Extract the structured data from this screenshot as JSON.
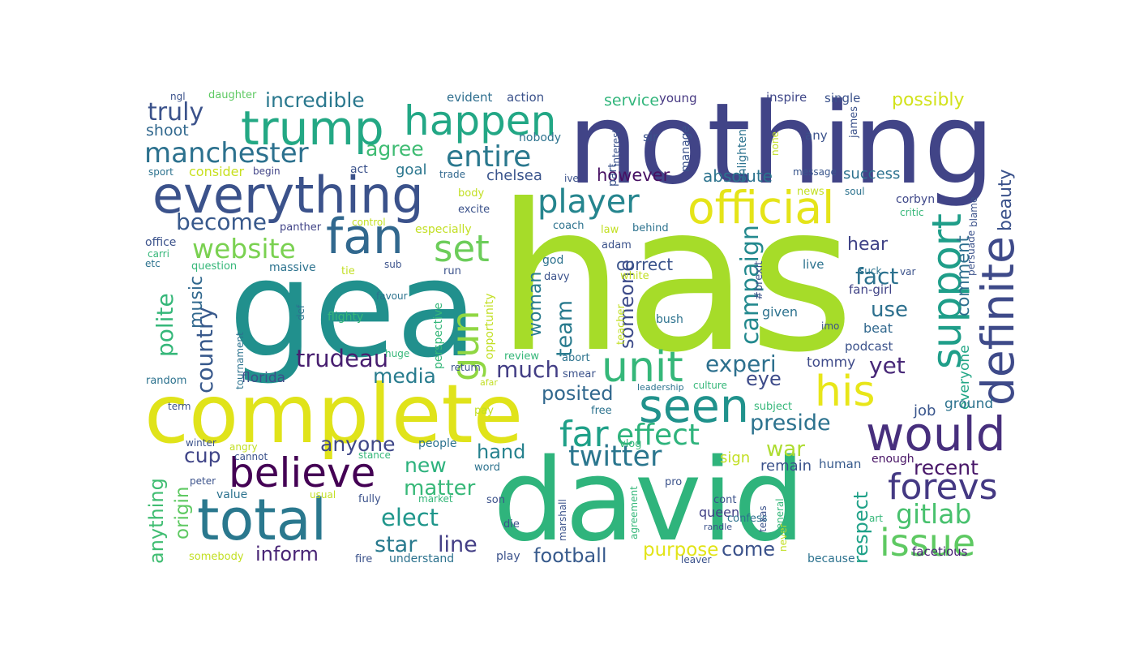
{
  "words": [
    {
      "t": "has",
      "c": "#a6dc29"
    },
    {
      "t": "nothing",
      "c": "#414487"
    },
    {
      "t": "gea",
      "c": "#21908d"
    },
    {
      "t": "complete",
      "c": "#e0e31a"
    },
    {
      "t": "david",
      "c": "#2fb47c"
    },
    {
      "t": "everything",
      "c": "#3b528b"
    },
    {
      "t": "total",
      "c": "#2a788e"
    },
    {
      "t": "trump",
      "c": "#23a884"
    },
    {
      "t": "happen",
      "c": "#22a785"
    },
    {
      "t": "official",
      "c": "#e5e419"
    },
    {
      "t": "fan",
      "c": "#31688e"
    },
    {
      "t": "support",
      "c": "#1f9e89"
    },
    {
      "t": "definite",
      "c": "#3e4a89"
    },
    {
      "t": "believe",
      "c": "#440154"
    },
    {
      "t": "seen",
      "c": "#20928c"
    },
    {
      "t": "his",
      "c": "#e8e619"
    },
    {
      "t": "unit",
      "c": "#35b779"
    },
    {
      "t": "would",
      "c": "#472f7d"
    },
    {
      "t": "manchester",
      "c": "#2c718e"
    },
    {
      "t": "player",
      "c": "#25858e"
    },
    {
      "t": "gun",
      "c": "#90d743"
    },
    {
      "t": "issue",
      "c": "#5ec962"
    },
    {
      "t": "forevs",
      "c": "#443983"
    },
    {
      "t": "entire",
      "c": "#2a788e"
    },
    {
      "t": "set",
      "c": "#6ccd5a"
    },
    {
      "t": "website",
      "c": "#7ad151"
    },
    {
      "t": "far",
      "c": "#1fa088"
    },
    {
      "t": "effect",
      "c": "#2eb37c"
    },
    {
      "t": "twitter",
      "c": "#2a768e"
    },
    {
      "t": "gitlab",
      "c": "#48c16e"
    },
    {
      "t": "truly",
      "c": "#3b528b"
    },
    {
      "t": "incredible",
      "c": "#2a788e"
    },
    {
      "t": "agree",
      "c": "#3fbc73"
    },
    {
      "t": "become",
      "c": "#38598c"
    },
    {
      "t": "trudeau",
      "c": "#481f70"
    },
    {
      "t": "campaign",
      "c": "#23898e"
    },
    {
      "t": "experi",
      "c": "#2d708e"
    },
    {
      "t": "media",
      "c": "#287c8e"
    },
    {
      "t": "much",
      "c": "#433e85"
    },
    {
      "t": "team",
      "c": "#297b8e"
    },
    {
      "t": "yet",
      "c": "#482878"
    },
    {
      "t": "country",
      "c": "#38598c"
    },
    {
      "t": "polite",
      "c": "#35b779"
    },
    {
      "t": "fact",
      "c": "#2c718e"
    },
    {
      "t": "use",
      "c": "#2d708e"
    },
    {
      "t": "preside",
      "c": "#2c728e"
    },
    {
      "t": "war",
      "c": "#addc30"
    },
    {
      "t": "respect",
      "c": "#1fa188"
    },
    {
      "t": "recent",
      "c": "#481769"
    },
    {
      "t": "elect",
      "c": "#1f968b"
    },
    {
      "t": "star",
      "c": "#297a8e"
    },
    {
      "t": "line",
      "c": "#433e85"
    },
    {
      "t": "matter",
      "c": "#37b878"
    },
    {
      "t": "new",
      "c": "#2db27d"
    },
    {
      "t": "hand",
      "c": "#26828e"
    },
    {
      "t": "anyone",
      "c": "#3f4788"
    },
    {
      "t": "inform",
      "c": "#482475"
    },
    {
      "t": "football",
      "c": "#375a8c"
    },
    {
      "t": "come",
      "c": "#3b528b"
    },
    {
      "t": "purpose",
      "c": "#e2e418"
    },
    {
      "t": "origin",
      "c": "#5ec962"
    },
    {
      "t": "anything",
      "c": "#40bd72"
    },
    {
      "t": "cup",
      "c": "#404588"
    },
    {
      "t": "music",
      "c": "#31688e"
    },
    {
      "t": "someone",
      "c": "#3e4c8a"
    },
    {
      "t": "woman",
      "c": "#297b8e"
    },
    {
      "t": "posited",
      "c": "#31688e"
    },
    {
      "t": "however",
      "c": "#471063"
    },
    {
      "t": "absolute",
      "c": "#2c738e"
    },
    {
      "t": "hear",
      "c": "#404387"
    },
    {
      "t": "comment",
      "c": "#2e6f8e"
    },
    {
      "t": "beauty",
      "c": "#3b528b"
    },
    {
      "t": "success",
      "c": "#2c718e"
    },
    {
      "t": "possibly",
      "c": "#d2e21b"
    },
    {
      "t": "service",
      "c": "#31b57b"
    },
    {
      "t": "eye",
      "c": "#3e4c8a"
    },
    {
      "t": "remain",
      "c": "#3b528b"
    },
    {
      "t": "job",
      "c": "#39558c"
    },
    {
      "t": "everyone",
      "c": "#21a685"
    },
    {
      "t": "ground",
      "c": "#2c728e"
    },
    {
      "t": "correct",
      "c": "#3a538b"
    },
    {
      "t": "shoot",
      "c": "#31688e"
    },
    {
      "t": "consider",
      "c": "#c8e020"
    },
    {
      "t": "goal",
      "c": "#2a768e"
    },
    {
      "t": "chelsea",
      "c": "#3a548c"
    },
    {
      "t": "florida",
      "c": "#3d4e8a"
    },
    {
      "t": "tommy",
      "c": "#3e4a89"
    },
    {
      "t": "given",
      "c": "#2c728e"
    },
    {
      "t": "podcast",
      "c": "#3b528b"
    },
    {
      "t": "beat",
      "c": "#31688e"
    },
    {
      "t": "fan-girl",
      "c": "#414487"
    },
    {
      "t": "live",
      "c": "#2c728e"
    },
    {
      "t": "corbyn",
      "c": "#3f4889"
    },
    {
      "t": "sign",
      "c": "#c2df23"
    },
    {
      "t": "human",
      "c": "#375a8c"
    },
    {
      "t": "enough",
      "c": "#471365"
    },
    {
      "t": "queen",
      "c": "#424086"
    },
    {
      "t": "facetious",
      "c": "#482173"
    },
    {
      "t": "because",
      "c": "#2c728e"
    },
    {
      "t": "ngl",
      "c": "#3b528b"
    },
    {
      "t": "daughter",
      "c": "#5ec962"
    },
    {
      "t": "evident",
      "c": "#2e6e8e"
    },
    {
      "t": "action",
      "c": "#3b528b"
    },
    {
      "t": "young",
      "c": "#453781"
    },
    {
      "t": "inspire",
      "c": "#3f4788"
    },
    {
      "t": "single",
      "c": "#3b528b"
    },
    {
      "t": "sport",
      "c": "#2c728e"
    },
    {
      "t": "begin",
      "c": "#414487"
    },
    {
      "t": "act",
      "c": "#3b528b"
    },
    {
      "t": "trade",
      "c": "#31688e"
    },
    {
      "t": "ive",
      "c": "#3b528b"
    },
    {
      "t": "nobody",
      "c": "#2c728e"
    },
    {
      "t": "sir",
      "c": "#3b528b"
    },
    {
      "t": "any",
      "c": "#3b528b"
    },
    {
      "t": "message",
      "c": "#39568c"
    },
    {
      "t": "news",
      "c": "#c2df23"
    },
    {
      "t": "soul",
      "c": "#2c728e"
    },
    {
      "t": "critic",
      "c": "#35b779"
    },
    {
      "t": "body",
      "c": "#c2df23"
    },
    {
      "t": "excite",
      "c": "#3b528b"
    },
    {
      "t": "panther",
      "c": "#414487"
    },
    {
      "t": "control",
      "c": "#c2df23"
    },
    {
      "t": "especially",
      "c": "#c2df23"
    },
    {
      "t": "coach",
      "c": "#2c728e"
    },
    {
      "t": "behind",
      "c": "#2c728e"
    },
    {
      "t": "law",
      "c": "#c2df23"
    },
    {
      "t": "adam",
      "c": "#3b528b"
    },
    {
      "t": "office",
      "c": "#3b528b"
    },
    {
      "t": "carri",
      "c": "#35b779"
    },
    {
      "t": "etc",
      "c": "#2c728e"
    },
    {
      "t": "question",
      "c": "#35b779"
    },
    {
      "t": "massive",
      "c": "#2c728e"
    },
    {
      "t": "tie",
      "c": "#c2df23"
    },
    {
      "t": "sub",
      "c": "#3b528b"
    },
    {
      "t": "run",
      "c": "#3b528b"
    },
    {
      "t": "god",
      "c": "#2c728e"
    },
    {
      "t": "davy",
      "c": "#3b528b"
    },
    {
      "t": "white",
      "c": "#c2df23"
    },
    {
      "t": "suck",
      "c": "#2c728e"
    },
    {
      "t": "var",
      "c": "#3b528b"
    },
    {
      "t": "favour",
      "c": "#2c728e"
    },
    {
      "t": "flighty",
      "c": "#35b779"
    },
    {
      "t": "bush",
      "c": "#2c728e"
    },
    {
      "t": "imo",
      "c": "#3b528b"
    },
    {
      "t": "random",
      "c": "#2c728e"
    },
    {
      "t": "huge",
      "c": "#35b779"
    },
    {
      "t": "review",
      "c": "#35b779"
    },
    {
      "t": "abort",
      "c": "#2c728e"
    },
    {
      "t": "return",
      "c": "#3b528b"
    },
    {
      "t": "smear",
      "c": "#3b528b"
    },
    {
      "t": "afar",
      "c": "#c2df23"
    },
    {
      "t": "culture",
      "c": "#35b779"
    },
    {
      "t": "term",
      "c": "#3b528b"
    },
    {
      "t": "pay",
      "c": "#c2df23"
    },
    {
      "t": "free",
      "c": "#2c728e"
    },
    {
      "t": "leadership",
      "c": "#2c728e"
    },
    {
      "t": "subject",
      "c": "#35b779"
    },
    {
      "t": "winter",
      "c": "#3b528b"
    },
    {
      "t": "angry",
      "c": "#c2df23"
    },
    {
      "t": "people",
      "c": "#2c728e"
    },
    {
      "t": "vlog",
      "c": "#35b779"
    },
    {
      "t": "stance",
      "c": "#35b779"
    },
    {
      "t": "cannot",
      "c": "#3b528b"
    },
    {
      "t": "word",
      "c": "#2c728e"
    },
    {
      "t": "peter",
      "c": "#3b528b"
    },
    {
      "t": "usual",
      "c": "#c2df23"
    },
    {
      "t": "value",
      "c": "#2c728e"
    },
    {
      "t": "fully",
      "c": "#3b528b"
    },
    {
      "t": "market",
      "c": "#35b779"
    },
    {
      "t": "pro",
      "c": "#3b528b"
    },
    {
      "t": "son",
      "c": "#3b528b"
    },
    {
      "t": "die",
      "c": "#3b528b"
    },
    {
      "t": "cont",
      "c": "#3b528b"
    },
    {
      "t": "confess",
      "c": "#2c728e"
    },
    {
      "t": "art",
      "c": "#35b779"
    },
    {
      "t": "randle",
      "c": "#3b528b"
    },
    {
      "t": "somebody",
      "c": "#c2df23"
    },
    {
      "t": "fire",
      "c": "#3b528b"
    },
    {
      "t": "understand",
      "c": "#2c728e"
    },
    {
      "t": "play",
      "c": "#3b528b"
    },
    {
      "t": "leaver",
      "c": "#3b528b"
    },
    {
      "t": "interest",
      "c": "#3b528b"
    },
    {
      "t": "part",
      "c": "#3b528b"
    },
    {
      "t": "manage",
      "c": "#3b528b"
    },
    {
      "t": "enlighten",
      "c": "#2c728e"
    },
    {
      "t": "none",
      "c": "#c2df23"
    },
    {
      "t": "james",
      "c": "#3b528b"
    },
    {
      "t": "blame",
      "c": "#3b528b"
    },
    {
      "t": "persuade",
      "c": "#3b528b"
    },
    {
      "t": "#brexit",
      "c": "#3b528b"
    },
    {
      "t": "tournament",
      "c": "#2c728e"
    },
    {
      "t": "def",
      "c": "#2c728e"
    },
    {
      "t": "perspective",
      "c": "#35b779"
    },
    {
      "t": "opportunity",
      "c": "#c2df23"
    },
    {
      "t": "teacher",
      "c": "#c2df23"
    },
    {
      "t": "marshall",
      "c": "#3b528b"
    },
    {
      "t": "agreement",
      "c": "#35b779"
    },
    {
      "t": "never",
      "c": "#c2df23"
    },
    {
      "t": "texas",
      "c": "#3b528b"
    },
    {
      "t": "general",
      "c": "#35b779"
    }
  ]
}
